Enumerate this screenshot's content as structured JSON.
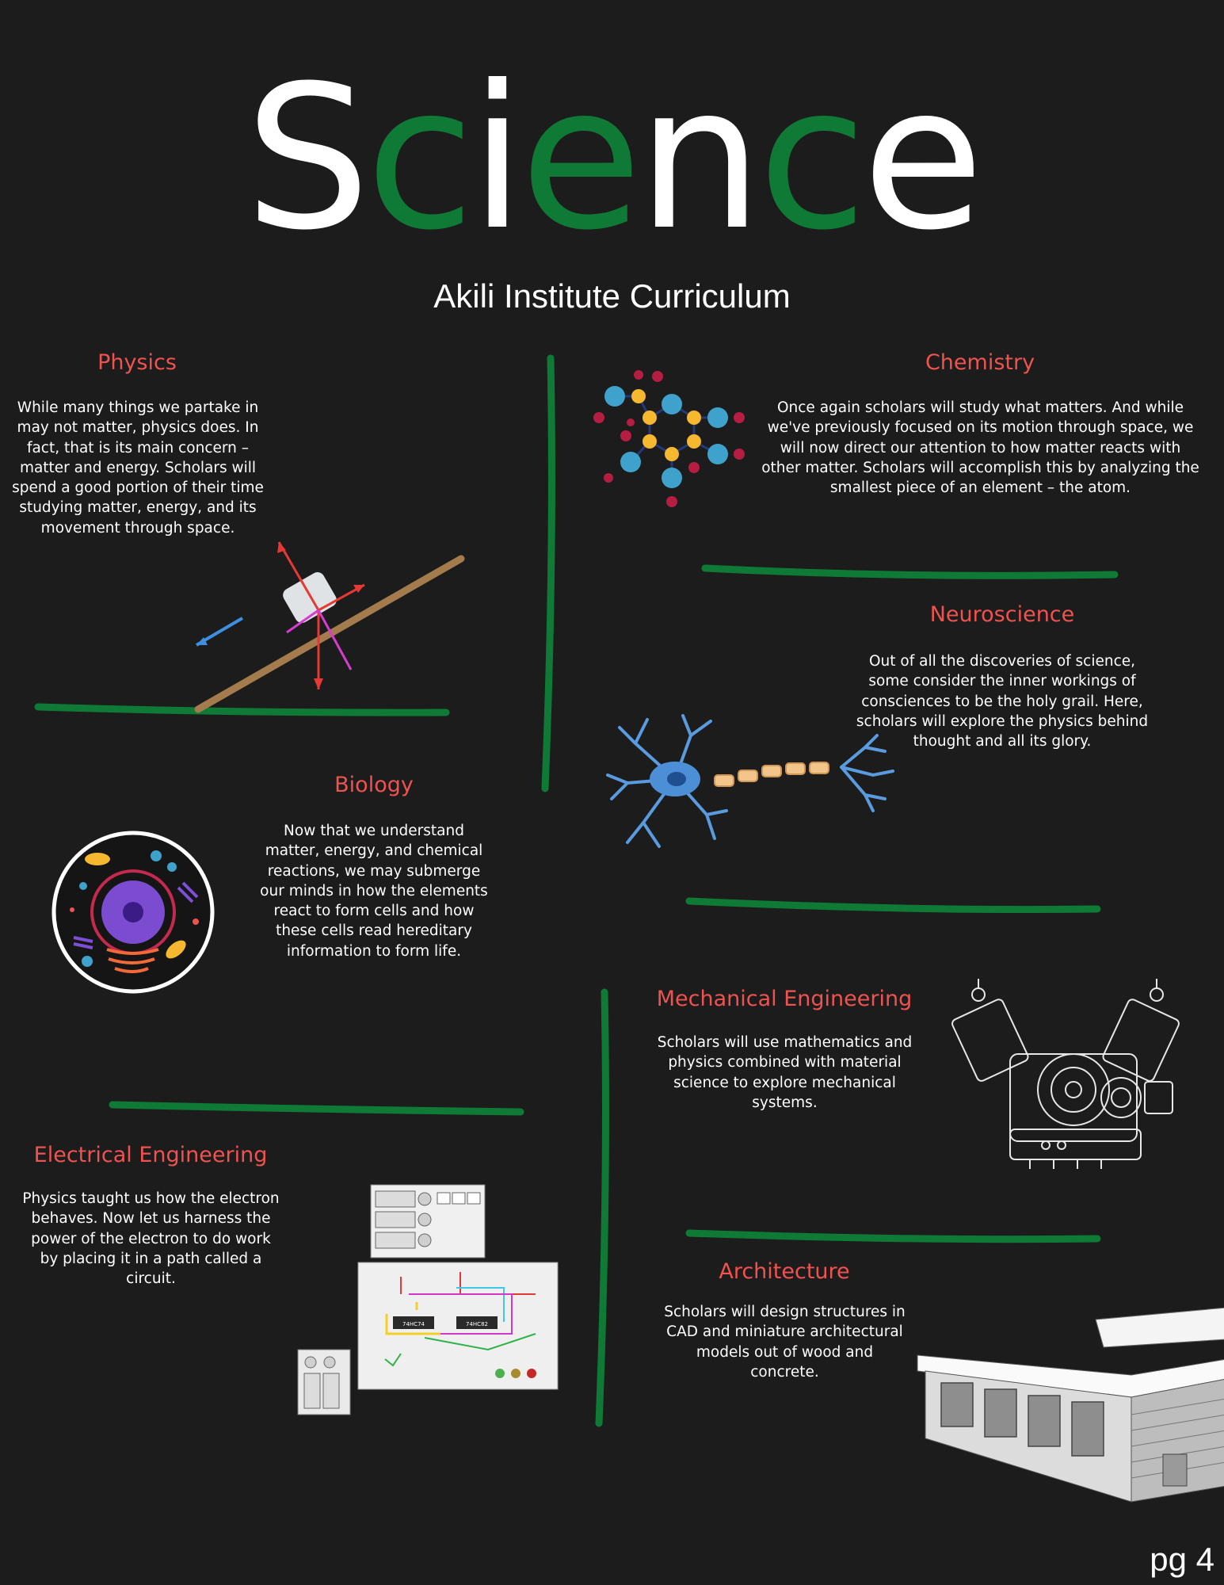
{
  "title": {
    "letters": [
      "S",
      "c",
      "i",
      "e",
      "n",
      "c",
      "e"
    ],
    "colors": [
      "#ffffff",
      "#0f7a36",
      "#ffffff",
      "#0f7a36",
      "#ffffff",
      "#0f7a36",
      "#ffffff"
    ]
  },
  "subtitle": "Akili Institute Curriculum",
  "colors": {
    "accent_green": "#0f7a36",
    "heading_red": "#ef5350",
    "background": "#1c1c1c"
  },
  "sections": {
    "physics": {
      "heading": "Physics",
      "body": "While many things we partake in may not matter, physics does. In fact, that is its main concern – matter and energy. Scholars will spend a good portion of their time studying matter, energy, and its movement through space.",
      "illustration": "inclined-plane-force-diagram"
    },
    "chemistry": {
      "heading": "Chemistry",
      "body": "Once again scholars will study what matters. And while we've previously focused on its motion through space, we will now direct our attention to how matter reacts with other matter. Scholars will accomplish this by analyzing the smallest piece of an element – the atom.",
      "illustration": "molecule-model"
    },
    "neuroscience": {
      "heading": "Neuroscience",
      "body": "Out of all the discoveries of science, some consider the inner workings of consciences to be the holy grail. Here, scholars will explore the physics behind thought and all its glory.",
      "illustration": "neuron"
    },
    "biology": {
      "heading": "Biology",
      "body": "Now that we understand matter, energy, and chemical reactions, we may submerge our minds in how the elements react to form cells and how these cells read hereditary information to form life.",
      "illustration": "animal-cell"
    },
    "mechanical": {
      "heading": "Mechanical Engineering",
      "body": "Scholars will use mathematics and physics combined with material science to explore mechanical systems.",
      "illustration": "engine-blueprint"
    },
    "electrical": {
      "heading": "Electrical Engineering",
      "body": "Physics taught us how the electron behaves. Now let us harness the power of the electron to do work by placing it in a path called a circuit.",
      "illustration": "breadboard-circuit",
      "chip_labels": [
        "74HC74",
        "74HC82"
      ]
    },
    "architecture": {
      "heading": "Architecture",
      "body": "Scholars will design structures in CAD and miniature architectural models out of wood and concrete.",
      "illustration": "house-sketch"
    }
  },
  "page_number": "pg 4"
}
